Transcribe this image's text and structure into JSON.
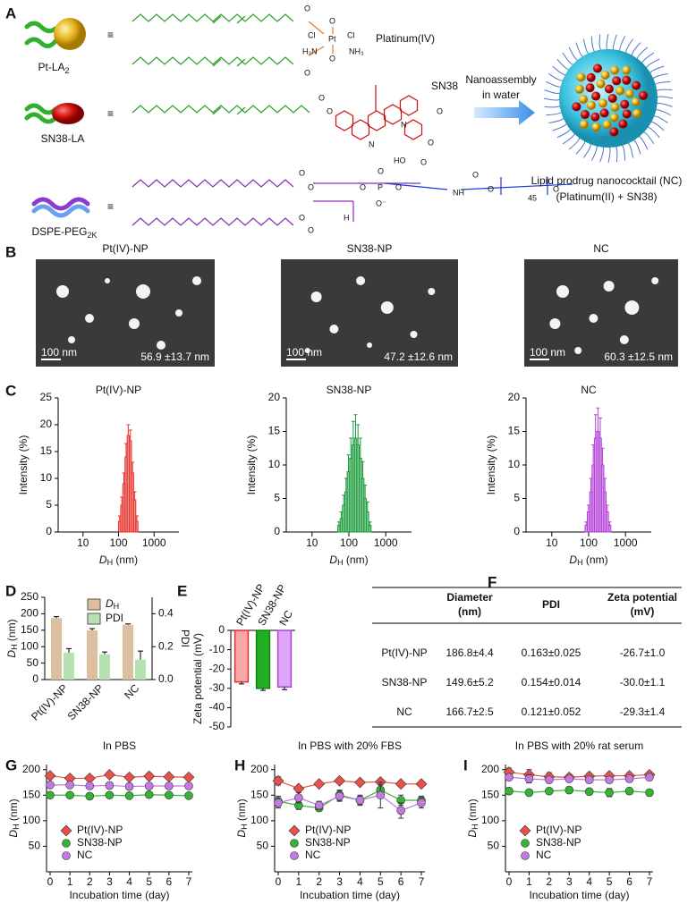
{
  "panel_labels": [
    "A",
    "B",
    "C",
    "D",
    "E",
    "F",
    "G",
    "H",
    "I"
  ],
  "panel_a": {
    "compounds": [
      {
        "name": "Pt-LA",
        "sub": "2"
      },
      {
        "name": "SN38-LA"
      },
      {
        "name": "DSPE-PEG",
        "sub": "2K"
      }
    ],
    "platinum_label": "Platinum(IV)",
    "sn38_label": "SN38",
    "atoms_pt": [
      "O",
      "O",
      "Cl",
      "Cl",
      "Pt",
      "H₃N",
      "NH₃",
      "O",
      "O"
    ],
    "atoms_sn38": [
      "O",
      "O",
      "N",
      "N",
      "O",
      "HO",
      "O",
      "O"
    ],
    "atoms_dspe": [
      "O",
      "O",
      "O",
      "O",
      "H",
      "O",
      "P",
      "O",
      "O⁻",
      "O",
      "NH",
      "O",
      "O",
      "45",
      "O"
    ],
    "arrow_text": [
      "Nanoassembly",
      "in water"
    ],
    "nc_text": "Lipid prodrug nanococktail (NC)",
    "nc_sub": "(Platinum(II) + SN38)"
  },
  "panel_b": {
    "titles": [
      "Pt(IV)-NP",
      "SN38-NP",
      "NC"
    ],
    "scale_bars": [
      "100 nm",
      "100 nm",
      "100 nm"
    ],
    "sizes": [
      "56.9 ±13.7 nm",
      "47.2 ±12.6 nm",
      "60.3 ±12.5 nm"
    ]
  },
  "chart_data": [
    {
      "type": "histogram",
      "title": "Pt(IV)-NP",
      "color": "#e8322c",
      "xscale": "log",
      "xlim": [
        2,
        5000
      ],
      "xticks": [
        10,
        100,
        1000
      ],
      "ylim": [
        0,
        25
      ],
      "yticks": [
        0,
        5,
        10,
        15,
        20,
        25
      ],
      "ylabel": "Intensity (%)",
      "xlabel": [
        "D",
        "H",
        " (nm)"
      ],
      "bins": [
        100,
        115,
        132,
        152,
        175,
        201,
        231,
        266,
        306,
        352
      ],
      "values": [
        2,
        5,
        9,
        14,
        18,
        17,
        11,
        6,
        2
      ],
      "errors": [
        1,
        1.5,
        2,
        2.5,
        2,
        2,
        2,
        1.5,
        1
      ]
    },
    {
      "type": "histogram",
      "title": "SN38-NP",
      "color": "#1a9a3a",
      "xscale": "log",
      "xlim": [
        2,
        5000
      ],
      "xticks": [
        10,
        100,
        1000
      ],
      "ylim": [
        0,
        20
      ],
      "yticks": [
        0,
        5,
        10,
        15,
        20
      ],
      "ylabel": "Intensity (%)",
      "xlabel": [
        "D",
        "H",
        " (nm)"
      ],
      "bins": [
        50,
        58,
        67,
        78,
        90,
        105,
        122,
        141,
        164,
        190,
        220,
        256,
        297,
        344,
        400
      ],
      "values": [
        1,
        2,
        4,
        6,
        9,
        11,
        13,
        14,
        13,
        11,
        8,
        5,
        3,
        1
      ],
      "errors": [
        0.5,
        1,
        1.5,
        2,
        2.5,
        3,
        3.5,
        3.5,
        3,
        3,
        2.5,
        2,
        1.5,
        0.5
      ]
    },
    {
      "type": "histogram",
      "title": "NC",
      "color": "#b33fd8",
      "xscale": "log",
      "xlim": [
        2,
        5000
      ],
      "xticks": [
        10,
        100,
        1000
      ],
      "ylim": [
        0,
        20
      ],
      "yticks": [
        0,
        5,
        10,
        15,
        20
      ],
      "ylabel": "Intensity (%)",
      "xlabel": [
        "D",
        "H",
        " (nm)"
      ],
      "bins": [
        80,
        92,
        107,
        124,
        143,
        166,
        192,
        222,
        257,
        297,
        344,
        400
      ],
      "values": [
        1,
        3,
        6,
        10,
        14,
        15,
        14,
        10,
        6,
        3,
        1
      ],
      "errors": [
        0.5,
        1,
        2,
        3,
        3.5,
        3.5,
        3,
        2.5,
        2,
        1,
        0.5
      ]
    },
    {
      "type": "bar",
      "categories": [
        "Pt(IV)-NP",
        "SN38-NP",
        "NC"
      ],
      "ylim": [
        0,
        250
      ],
      "yticks": [
        0,
        50,
        100,
        150,
        200,
        250
      ],
      "ylabel": [
        "D",
        "H",
        " (nm)"
      ],
      "y2lim": [
        0,
        0.5
      ],
      "y2ticks": [
        {
          "value": 0,
          "label": "0.0"
        },
        0.2,
        0.4
      ],
      "y2label": "PDI",
      "series": [
        {
          "name": "D",
          "name_sub": "H",
          "color": "#dcbf9f",
          "values": [
            186.8,
            149.6,
            166.7
          ],
          "errors": [
            4.4,
            5.2,
            2.5
          ]
        },
        {
          "name": "PDI",
          "color": "#b6e2b2",
          "axis": "y2",
          "values": [
            0.163,
            0.154,
            0.121
          ],
          "errors": [
            0.025,
            0.014,
            0.052
          ]
        }
      ]
    },
    {
      "type": "bar",
      "categories": [
        "Pt(IV)-NP",
        "SN38-NP",
        "NC"
      ],
      "ylim": [
        -50,
        0
      ],
      "yticks": [
        0,
        -10,
        -20,
        -30,
        -40,
        -50
      ],
      "ylabel": "Zeta potential (mV)",
      "values": [
        -26.7,
        -30.0,
        -29.3
      ],
      "errors": [
        1.0,
        1.1,
        1.4
      ],
      "colors": [
        "#f7a7a6",
        "#22b022",
        "#dfa6f5"
      ],
      "edgecolors": [
        "#e03030",
        "#108010",
        "#b040e0"
      ]
    },
    {
      "type": "line",
      "title": "In PBS",
      "x": [
        0,
        1,
        2,
        3,
        4,
        5,
        6,
        7
      ],
      "xlim": [
        0,
        7
      ],
      "xticks": [
        0,
        1,
        2,
        3,
        4,
        5,
        6,
        7
      ],
      "ylim": [
        0,
        210
      ],
      "yticks": [
        50,
        100,
        150,
        200
      ],
      "xlabel": "Incubation time (day)",
      "ylabel": [
        "D",
        "H",
        " (nm)"
      ],
      "series": [
        {
          "name": "Pt(IV)-NP",
          "color": "#e8504a",
          "marker": "diamond",
          "values": [
            188,
            183,
            183,
            190,
            185,
            187,
            186,
            185
          ],
          "errors": [
            5,
            4,
            3,
            3,
            3,
            6,
            4,
            3
          ]
        },
        {
          "name": "SN38-NP",
          "color": "#36b336",
          "marker": "circle",
          "values": [
            150,
            150,
            148,
            150,
            149,
            151,
            150,
            149
          ],
          "errors": [
            3,
            3,
            3,
            3,
            3,
            3,
            3,
            3
          ]
        },
        {
          "name": "NC",
          "color": "#c07ae0",
          "marker": "circle",
          "values": [
            170,
            170,
            168,
            169,
            167,
            168,
            168,
            168
          ],
          "errors": [
            4,
            4,
            3,
            3,
            3,
            4,
            3,
            3
          ]
        }
      ]
    },
    {
      "type": "line",
      "title": "In PBS with 20% FBS",
      "x": [
        0,
        1,
        2,
        3,
        4,
        5,
        6,
        7
      ],
      "xlim": [
        0,
        7
      ],
      "xticks": [
        0,
        1,
        2,
        3,
        4,
        5,
        6,
        7
      ],
      "ylim": [
        0,
        210
      ],
      "yticks": [
        50,
        100,
        150,
        200
      ],
      "xlabel": "Incubation time (day)",
      "ylabel": [
        "D",
        "H",
        " (nm)"
      ],
      "series": [
        {
          "name": "Pt(IV)-NP",
          "color": "#e8504a",
          "marker": "diamond",
          "values": [
            178,
            163,
            172,
            178,
            175,
            176,
            172,
            172
          ],
          "errors": [
            8,
            5,
            3,
            4,
            3,
            4,
            3,
            3
          ]
        },
        {
          "name": "SN38-NP",
          "color": "#36b336",
          "marker": "circle",
          "values": [
            138,
            130,
            125,
            150,
            140,
            160,
            140,
            140
          ],
          "errors": [
            10,
            8,
            6,
            10,
            8,
            10,
            10,
            8
          ]
        },
        {
          "name": "NC",
          "color": "#c07ae0",
          "marker": "circle",
          "values": [
            135,
            145,
            130,
            148,
            140,
            150,
            120,
            135
          ],
          "errors": [
            10,
            10,
            8,
            10,
            10,
            25,
            15,
            10
          ]
        }
      ]
    },
    {
      "type": "line",
      "title": "In PBS with 20% rat serum",
      "x": [
        0,
        1,
        2,
        3,
        4,
        5,
        6,
        7
      ],
      "xlim": [
        0,
        7
      ],
      "xticks": [
        0,
        1,
        2,
        3,
        4,
        5,
        6,
        7
      ],
      "ylim": [
        0,
        210
      ],
      "yticks": [
        50,
        100,
        150,
        200
      ],
      "xlabel": "Incubation time (day)",
      "ylabel": [
        "D",
        "H",
        " (nm)"
      ],
      "series": [
        {
          "name": "Pt(IV)-NP",
          "color": "#e8504a",
          "marker": "diamond",
          "values": [
            195,
            190,
            186,
            185,
            187,
            188,
            188,
            190
          ],
          "errors": [
            8,
            10,
            8,
            6,
            6,
            6,
            6,
            6
          ]
        },
        {
          "name": "SN38-NP",
          "color": "#36b336",
          "marker": "circle",
          "values": [
            158,
            155,
            158,
            160,
            157,
            155,
            158,
            155
          ],
          "errors": [
            6,
            5,
            5,
            6,
            6,
            8,
            6,
            6
          ]
        },
        {
          "name": "NC",
          "color": "#c07ae0",
          "marker": "circle",
          "values": [
            185,
            182,
            180,
            182,
            180,
            180,
            182,
            185
          ],
          "errors": [
            6,
            8,
            6,
            6,
            6,
            6,
            6,
            6
          ]
        }
      ]
    }
  ],
  "table": {
    "header": [
      [
        "Diameter",
        "(nm)"
      ],
      [
        "PDI"
      ],
      [
        "Zeta potential",
        "(mV)"
      ]
    ],
    "rows": [
      [
        "Pt(IV)-NP",
        "186.8±4.4",
        "0.163±0.025",
        "-26.7±1.0"
      ],
      [
        "SN38-NP",
        "149.6±5.2",
        "0.154±0.014",
        "-30.0±1.1"
      ],
      [
        "NC",
        "166.7±2.5",
        "0.121±0.052",
        "-29.3±1.4"
      ]
    ]
  }
}
